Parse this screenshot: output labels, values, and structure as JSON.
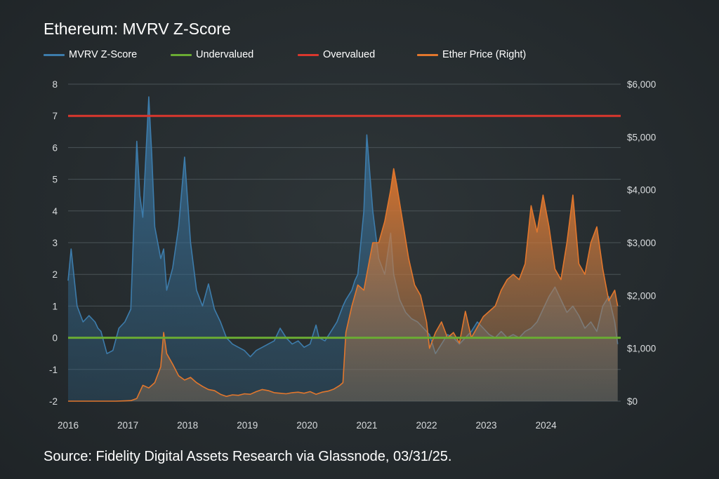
{
  "title": "Ethereum: MVRV Z-Score",
  "source": "Source: Fidelity Digital Assets Research via Glassnode, 03/31/25.",
  "legend": [
    {
      "label": "MVRV Z-Score",
      "color": "#3d7cab"
    },
    {
      "label": "Undervalued",
      "color": "#6aab33"
    },
    {
      "label": "Overvalued",
      "color": "#d9372d"
    },
    {
      "label": "Ether Price (Right)",
      "color": "#e2772d"
    }
  ],
  "chart_data": {
    "type": "area",
    "title": "Ethereum: MVRV Z-Score",
    "x_ticks": [
      "2016",
      "2017",
      "2018",
      "2019",
      "2020",
      "2021",
      "2022",
      "2023",
      "2024"
    ],
    "x_range": [
      2016.0,
      2025.25
    ],
    "y_left": {
      "range": [
        -2,
        8
      ],
      "ticks": [
        "-2",
        "-1",
        "0",
        "1",
        "2",
        "3",
        "4",
        "5",
        "6",
        "7",
        "8"
      ]
    },
    "y_right": {
      "range": [
        0,
        6000
      ],
      "ticks": [
        "$0",
        "$1,000",
        "$2,000",
        "$3,000",
        "$4,000",
        "$5,000",
        "$6,000"
      ]
    },
    "grid": true,
    "legend_position": "top-left",
    "thresholds": [
      {
        "name": "Undervalued",
        "value": 0,
        "color": "#6aab33"
      },
      {
        "name": "Overvalued",
        "value": 7,
        "color": "#d9372d"
      }
    ],
    "series": [
      {
        "name": "MVRV Z-Score",
        "axis": "left",
        "color": "#3d7cab",
        "x": [
          2016.0,
          2016.05,
          2016.15,
          2016.25,
          2016.35,
          2016.45,
          2016.5,
          2016.55,
          2016.65,
          2016.75,
          2016.85,
          2016.95,
          2017.05,
          2017.15,
          2017.2,
          2017.25,
          2017.35,
          2017.4,
          2017.45,
          2017.55,
          2017.6,
          2017.65,
          2017.75,
          2017.85,
          2017.95,
          2018.05,
          2018.15,
          2018.25,
          2018.35,
          2018.45,
          2018.55,
          2018.65,
          2018.75,
          2018.85,
          2018.95,
          2019.05,
          2019.15,
          2019.25,
          2019.35,
          2019.45,
          2019.55,
          2019.65,
          2019.75,
          2019.85,
          2019.95,
          2020.05,
          2020.15,
          2020.2,
          2020.3,
          2020.4,
          2020.5,
          2020.6,
          2020.65,
          2020.75,
          2020.8,
          2020.85,
          2020.9,
          2020.95,
          2021.0,
          2021.1,
          2021.2,
          2021.3,
          2021.4,
          2021.45,
          2021.55,
          2021.65,
          2021.75,
          2021.85,
          2021.95,
          2022.05,
          2022.15,
          2022.25,
          2022.35,
          2022.45,
          2022.55,
          2022.65,
          2022.75,
          2022.85,
          2022.95,
          2023.05,
          2023.15,
          2023.25,
          2023.35,
          2023.45,
          2023.55,
          2023.65,
          2023.75,
          2023.85,
          2023.95,
          2024.05,
          2024.15,
          2024.25,
          2024.35,
          2024.45,
          2024.55,
          2024.65,
          2024.75,
          2024.85,
          2024.95,
          2025.05,
          2025.15,
          2025.2
        ],
        "y": [
          1.8,
          2.8,
          1.0,
          0.5,
          0.7,
          0.5,
          0.3,
          0.2,
          -0.5,
          -0.4,
          0.3,
          0.5,
          0.9,
          6.2,
          4.5,
          3.8,
          7.6,
          5.8,
          3.5,
          2.5,
          2.8,
          1.5,
          2.2,
          3.5,
          5.7,
          3.0,
          1.5,
          1.0,
          1.7,
          0.9,
          0.5,
          0.0,
          -0.2,
          -0.3,
          -0.4,
          -0.6,
          -0.4,
          -0.3,
          -0.2,
          -0.1,
          0.3,
          0.0,
          -0.2,
          -0.1,
          -0.3,
          -0.2,
          0.4,
          0.0,
          -0.1,
          0.2,
          0.5,
          1.0,
          1.2,
          1.5,
          1.8,
          2.0,
          3.0,
          4.0,
          6.4,
          4.0,
          2.5,
          2.0,
          3.3,
          2.0,
          1.2,
          0.8,
          0.6,
          0.5,
          0.3,
          0.1,
          -0.5,
          -0.2,
          0.1,
          0.0,
          -0.2,
          0.0,
          0.2,
          0.5,
          0.3,
          0.1,
          0.0,
          0.2,
          0.0,
          0.1,
          0.0,
          0.2,
          0.3,
          0.5,
          0.9,
          1.3,
          1.6,
          1.2,
          0.8,
          1.0,
          0.7,
          0.3,
          0.5,
          0.2,
          1.0,
          1.3,
          0.5,
          -0.2
        ]
      },
      {
        "name": "Ether Price (Right)",
        "axis": "right",
        "color": "#e2772d",
        "x": [
          2016.0,
          2016.2,
          2016.4,
          2016.6,
          2016.8,
          2016.95,
          2017.05,
          2017.15,
          2017.25,
          2017.35,
          2017.45,
          2017.55,
          2017.6,
          2017.65,
          2017.75,
          2017.85,
          2017.95,
          2018.05,
          2018.15,
          2018.25,
          2018.35,
          2018.45,
          2018.55,
          2018.65,
          2018.75,
          2018.85,
          2018.95,
          2019.05,
          2019.15,
          2019.25,
          2019.35,
          2019.45,
          2019.55,
          2019.65,
          2019.75,
          2019.85,
          2019.95,
          2020.05,
          2020.15,
          2020.25,
          2020.35,
          2020.45,
          2020.55,
          2020.6,
          2020.65,
          2020.75,
          2020.85,
          2020.95,
          2021.0,
          2021.1,
          2021.2,
          2021.3,
          2021.4,
          2021.45,
          2021.5,
          2021.6,
          2021.7,
          2021.8,
          2021.9,
          2022.0,
          2022.05,
          2022.15,
          2022.25,
          2022.35,
          2022.45,
          2022.55,
          2022.65,
          2022.75,
          2022.85,
          2022.95,
          2023.05,
          2023.15,
          2023.25,
          2023.35,
          2023.45,
          2023.55,
          2023.65,
          2023.75,
          2023.85,
          2023.95,
          2024.05,
          2024.15,
          2024.25,
          2024.35,
          2024.45,
          2024.55,
          2024.65,
          2024.75,
          2024.85,
          2024.95,
          2025.05,
          2025.15,
          2025.2
        ],
        "y": [
          0,
          0,
          0,
          0,
          0,
          5,
          10,
          50,
          300,
          250,
          350,
          650,
          1300,
          900,
          700,
          480,
          400,
          450,
          350,
          280,
          220,
          200,
          130,
          90,
          120,
          110,
          140,
          130,
          180,
          220,
          200,
          160,
          150,
          140,
          160,
          170,
          150,
          180,
          130,
          170,
          190,
          230,
          300,
          350,
          1300,
          1800,
          2200,
          2100,
          2400,
          3000,
          3000,
          3400,
          4000,
          4400,
          4100,
          3400,
          2700,
          2200,
          2000,
          1500,
          1000,
          1300,
          1500,
          1200,
          1300,
          1100,
          1700,
          1200,
          1400,
          1600,
          1700,
          1800,
          2100,
          2300,
          2400,
          2300,
          2600,
          3700,
          3200,
          3900,
          3300,
          2500,
          2300,
          3000,
          3900,
          2600,
          2400,
          3000,
          3300,
          2500,
          1900,
          2100,
          1800
        ]
      }
    ]
  }
}
